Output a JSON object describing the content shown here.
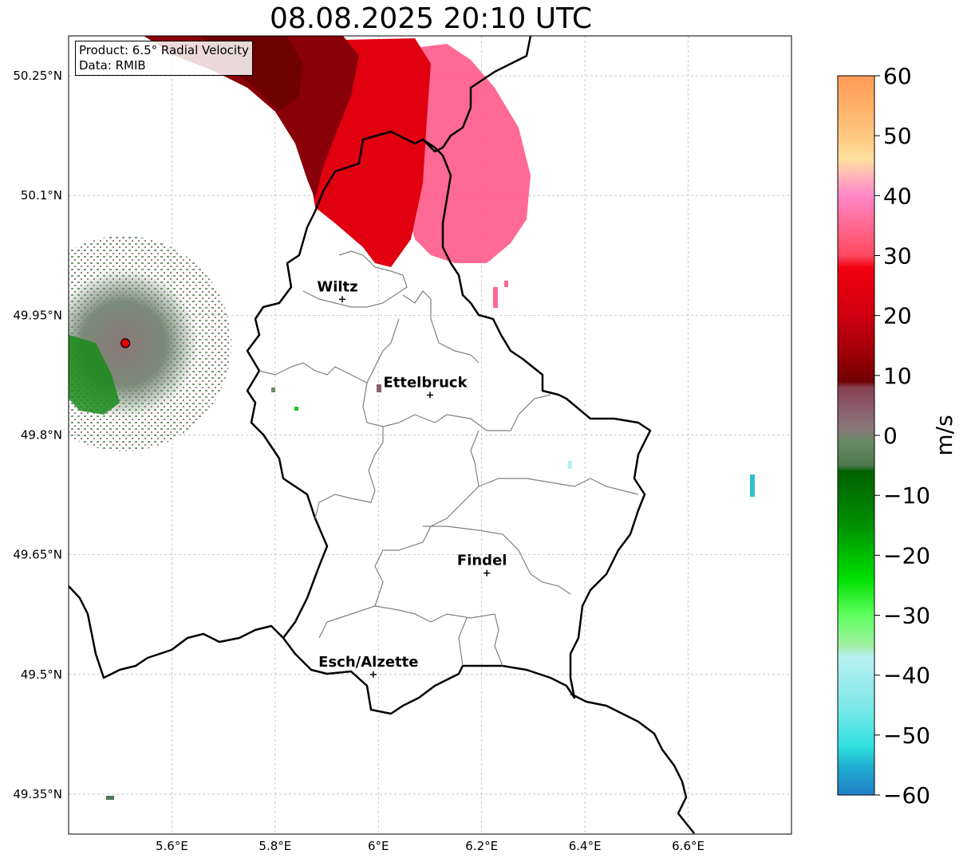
{
  "title": "08.08.2025 20:10 UTC",
  "info": {
    "product": "Product: 6.5° Radial Velocity",
    "data": "Data: RMIB"
  },
  "axes": {
    "lon_ticks": [
      5.6,
      5.8,
      6.0,
      6.2,
      6.4,
      6.6
    ],
    "lon_labels": [
      "5.6°E",
      "5.8°E",
      "6°E",
      "6.2°E",
      "6.4°E",
      "6.6°E"
    ],
    "lat_ticks": [
      50.25,
      50.1,
      49.95,
      49.8,
      49.65,
      49.5,
      49.35
    ],
    "lat_labels": [
      "50.25°N",
      "50.1°N",
      "49.95°N",
      "49.8°N",
      "49.65°N",
      "49.5°N",
      "49.35°N"
    ],
    "lon_range": [
      5.4,
      6.8
    ],
    "lat_range": [
      49.3,
      50.3
    ],
    "grid": true
  },
  "cities": [
    {
      "name": "Wiltz",
      "lon": 5.93,
      "lat": 49.97
    },
    {
      "name": "Ettelbruck",
      "lon": 6.1,
      "lat": 49.85
    },
    {
      "name": "Findel",
      "lon": 6.21,
      "lat": 49.627
    },
    {
      "name": "Esch/Alzette",
      "lon": 5.99,
      "lat": 49.5
    }
  ],
  "radar_site": {
    "lon": 5.51,
    "lat": 49.915,
    "color": "#e00000"
  },
  "colorbar": {
    "label": "m/s",
    "range": [
      -60,
      60
    ],
    "tick_values": [
      60,
      50,
      40,
      30,
      20,
      10,
      0,
      -10,
      -20,
      -30,
      -40,
      -50,
      -60
    ],
    "tick_labels": [
      "60",
      "50",
      "40",
      "30",
      "20",
      "10",
      "0",
      "−10",
      "−20",
      "−30",
      "−40",
      "−50",
      "−60"
    ],
    "stops": [
      {
        "v": 60,
        "c": "#ff9a58"
      },
      {
        "v": 55,
        "c": "#ffb068"
      },
      {
        "v": 50,
        "c": "#ffc880"
      },
      {
        "v": 46,
        "c": "#ffe0a0"
      },
      {
        "v": 43,
        "c": "#ffb0b8"
      },
      {
        "v": 40,
        "c": "#ff88c8"
      },
      {
        "v": 35,
        "c": "#ff6890"
      },
      {
        "v": 30,
        "c": "#ff4860"
      },
      {
        "v": 28,
        "c": "#f00010"
      },
      {
        "v": 20,
        "c": "#d00010"
      },
      {
        "v": 14,
        "c": "#a00008"
      },
      {
        "v": 9,
        "c": "#700000"
      },
      {
        "v": 8,
        "c": "#884050"
      },
      {
        "v": 4,
        "c": "#8a6070"
      },
      {
        "v": 1,
        "c": "#8a7878"
      },
      {
        "v": -1,
        "c": "#688a68"
      },
      {
        "v": -5,
        "c": "#507850"
      },
      {
        "v": -6,
        "c": "#006000"
      },
      {
        "v": -15,
        "c": "#009000"
      },
      {
        "v": -24,
        "c": "#00e000"
      },
      {
        "v": -30,
        "c": "#60ff60"
      },
      {
        "v": -35,
        "c": "#a0f0a0"
      },
      {
        "v": -37,
        "c": "#b8f0f0"
      },
      {
        "v": -45,
        "c": "#80e8e8"
      },
      {
        "v": -52,
        "c": "#30e0e0"
      },
      {
        "v": -55,
        "c": "#20b0d0"
      },
      {
        "v": -60,
        "c": "#2080c8"
      }
    ]
  }
}
